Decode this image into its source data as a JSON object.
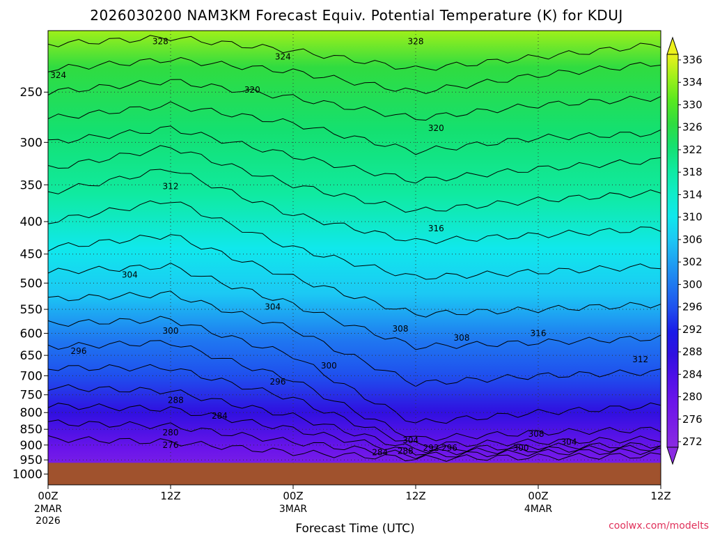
{
  "chart_data": {
    "type": "heatmap",
    "title": "2026030200 NAM3KM Forecast Equiv. Potential Temperature (K) for KDUJ",
    "xlabel": "Forecast Time (UTC)",
    "ylabel": "",
    "source_credit": "coolwx.com/modelts",
    "x_range_hours": [
      0,
      60
    ],
    "y_range_hpa": [
      200,
      1040
    ],
    "y_scale": "log-pressure (inverted)",
    "x_ticks": [
      {
        "hour": 0,
        "label": "00Z",
        "sub": "2MAR",
        "sub2": "2026"
      },
      {
        "hour": 12,
        "label": "12Z",
        "sub": "",
        "sub2": ""
      },
      {
        "hour": 24,
        "label": "00Z",
        "sub": "3MAR",
        "sub2": ""
      },
      {
        "hour": 36,
        "label": "12Z",
        "sub": "",
        "sub2": ""
      },
      {
        "hour": 48,
        "label": "00Z",
        "sub": "4MAR",
        "sub2": ""
      },
      {
        "hour": 60,
        "label": "12Z",
        "sub": "",
        "sub2": ""
      }
    ],
    "y_ticks": [
      250,
      300,
      350,
      400,
      450,
      500,
      550,
      600,
      650,
      700,
      750,
      800,
      850,
      900,
      950,
      1000
    ],
    "colorbar": {
      "labels": [
        272,
        276,
        280,
        284,
        288,
        292,
        296,
        300,
        302,
        306,
        310,
        314,
        318,
        322,
        326,
        330,
        334,
        336
      ],
      "colors": [
        "#8a2be2",
        "#7a1ee6",
        "#6a14ea",
        "#5010e8",
        "#3010e0",
        "#1a1ae8",
        "#1f4fee",
        "#1f78f0",
        "#1fa0f2",
        "#1cc8f4",
        "#10e8ec",
        "#10ecc8",
        "#10eaa0",
        "#14e070",
        "#30dc40",
        "#58e820",
        "#9ef01a",
        "#ecf01c"
      ]
    },
    "surface_pressure_hpa": 960,
    "contour_labels": [
      {
        "value": 328,
        "hour": 11.0,
        "hpa": 208
      },
      {
        "value": 328,
        "hour": 36.0,
        "hpa": 208
      },
      {
        "value": 324,
        "hour": 1.0,
        "hpa": 235
      },
      {
        "value": 324,
        "hour": 23.0,
        "hpa": 220
      },
      {
        "value": 320,
        "hour": 20.0,
        "hpa": 248
      },
      {
        "value": 320,
        "hour": 38.0,
        "hpa": 285
      },
      {
        "value": 312,
        "hour": 12.0,
        "hpa": 352
      },
      {
        "value": 316,
        "hour": 38.0,
        "hpa": 410
      },
      {
        "value": 304,
        "hour": 8.0,
        "hpa": 485
      },
      {
        "value": 304,
        "hour": 22.0,
        "hpa": 545
      },
      {
        "value": 300,
        "hour": 12.0,
        "hpa": 595
      },
      {
        "value": 296,
        "hour": 3.0,
        "hpa": 640
      },
      {
        "value": 308,
        "hour": 34.5,
        "hpa": 590
      },
      {
        "value": 308,
        "hour": 40.5,
        "hpa": 610
      },
      {
        "value": 316,
        "hour": 48.0,
        "hpa": 600
      },
      {
        "value": 312,
        "hour": 58.0,
        "hpa": 660
      },
      {
        "value": 300,
        "hour": 27.5,
        "hpa": 675
      },
      {
        "value": 296,
        "hour": 22.5,
        "hpa": 715
      },
      {
        "value": 288,
        "hour": 12.5,
        "hpa": 765
      },
      {
        "value": 284,
        "hour": 16.8,
        "hpa": 810
      },
      {
        "value": 280,
        "hour": 12.0,
        "hpa": 860
      },
      {
        "value": 276,
        "hour": 12.0,
        "hpa": 900
      },
      {
        "value": 304,
        "hour": 35.5,
        "hpa": 885
      },
      {
        "value": 308,
        "hour": 47.8,
        "hpa": 865
      },
      {
        "value": 304,
        "hour": 51.0,
        "hpa": 890
      },
      {
        "value": 300,
        "hour": 46.3,
        "hpa": 910
      },
      {
        "value": 296,
        "hour": 39.3,
        "hpa": 910
      },
      {
        "value": 292,
        "hour": 37.5,
        "hpa": 910
      },
      {
        "value": 288,
        "hour": 35.0,
        "hpa": 920
      },
      {
        "value": 284,
        "hour": 32.5,
        "hpa": 925
      }
    ]
  }
}
